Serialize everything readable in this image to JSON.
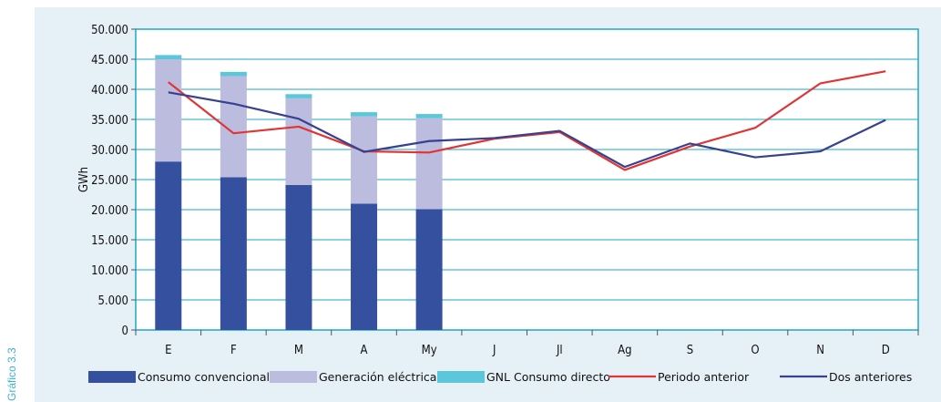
{
  "side_label": "Gráfico 3.3",
  "colors": {
    "panel_bg": "#e6f0f7",
    "plot_bg": "#ffffff",
    "plot_border": "#1ea7c9",
    "gridline": "#1ea7c9",
    "consumo": "#3650a0",
    "generacion": "#bcbcdf",
    "gnl": "#5cc7da",
    "periodo_anterior": "#e03535",
    "dos_anteriores": "#37418f"
  },
  "chart_data": {
    "type": "bar",
    "title": "",
    "xlabel": "",
    "ylabel": "GWh",
    "ylim": [
      0,
      50000
    ],
    "yticks": [
      "0",
      "5.000",
      "10.000",
      "15.000",
      "20.000",
      "25.000",
      "30.000",
      "35.000",
      "40.000",
      "45.000",
      "50.000"
    ],
    "ytick_values": [
      0,
      5000,
      10000,
      15000,
      20000,
      25000,
      30000,
      35000,
      40000,
      45000,
      50000
    ],
    "grid": true,
    "legend_position": "bottom",
    "categories": [
      "E",
      "F",
      "M",
      "A",
      "My",
      "J",
      "Jl",
      "Ag",
      "S",
      "O",
      "N",
      "D"
    ],
    "series": [
      {
        "name": "Consumo convencional",
        "kind": "bar-stacked",
        "values": [
          28000,
          25400,
          24100,
          21000,
          20100,
          null,
          null,
          null,
          null,
          null,
          null,
          null
        ]
      },
      {
        "name": "Generación eléctrica",
        "kind": "bar-stacked",
        "values": [
          17000,
          16800,
          14400,
          14500,
          15100,
          null,
          null,
          null,
          null,
          null,
          null,
          null
        ]
      },
      {
        "name": "GNL Consumo directo",
        "kind": "bar-stacked",
        "values": [
          700,
          700,
          700,
          700,
          700,
          null,
          null,
          null,
          null,
          null,
          null,
          null
        ]
      },
      {
        "name": "Periodo anterior",
        "kind": "line",
        "values": [
          41200,
          32700,
          33800,
          29700,
          29500,
          31800,
          32900,
          26600,
          30500,
          33600,
          41000,
          43000
        ]
      },
      {
        "name": "Dos anteriores",
        "kind": "line",
        "values": [
          39500,
          37600,
          35100,
          29600,
          31400,
          31900,
          33100,
          27100,
          31000,
          28700,
          29700,
          34900
        ]
      }
    ]
  }
}
